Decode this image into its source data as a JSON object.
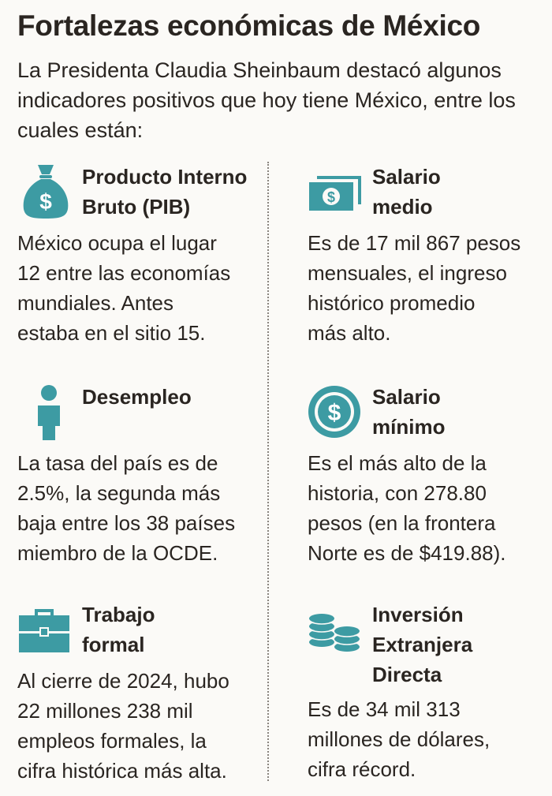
{
  "header": {
    "title": "Fortalezas económicas de México",
    "subtitle": "La Presidenta Claudia Sheinbaum destacó algunos indicadores positivos que hoy tiene México, entre los cuales están:"
  },
  "accent_color": "#3d9ba3",
  "items": [
    {
      "icon": "money-bag-icon",
      "heading": "Producto Interno\nBruto (PIB)",
      "body": "México ocupa el lugar\n12 entre las economías\nmundiales. Antes\nestaba en el sitio 15."
    },
    {
      "icon": "banknote-icon",
      "heading": "Salario\nmedio",
      "body": "Es de 17 mil 867 pesos\nmensuales, el ingreso\nhistórico promedio\nmás alto."
    },
    {
      "icon": "person-icon",
      "heading": "Desempleo",
      "body": "La tasa del país es de\n2.5%, la segunda más\nbaja entre los 38 países\nmiembro de la OCDE."
    },
    {
      "icon": "dollar-coin-icon",
      "heading": "Salario\nmínimo",
      "body": "Es el más alto de la\nhistoria, con 278.80\npesos (en la frontera\nNorte es de $419.88)."
    },
    {
      "icon": "briefcase-icon",
      "heading": "Trabajo\nformal",
      "body": "Al cierre de 2024, hubo\n22 millones 238 mil\nempleos formales, la\ncifra histórica más alta."
    },
    {
      "icon": "coin-stacks-icon",
      "heading": "Inversión\nExtranjera\nDirecta",
      "body": "Es de 34 mil 313\nmillones de dólares,\ncifra récord."
    }
  ]
}
